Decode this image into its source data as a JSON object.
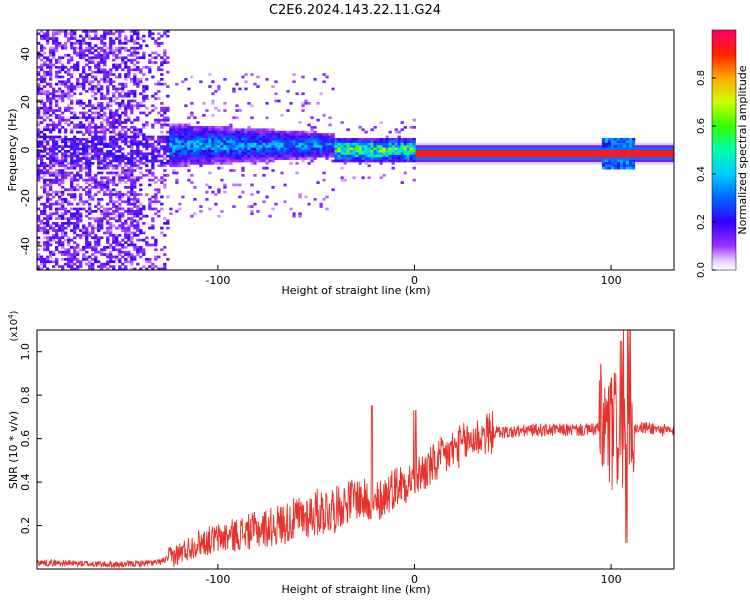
{
  "title": "C2E6.2024.143.22.11.G24",
  "chart_data": [
    {
      "type": "heatmap",
      "title": "C2E6.2024.143.22.11.G24",
      "xlabel": "Height of straight line (km)",
      "ylabel": "Frequency (Hz)",
      "xlim": [
        -192,
        132
      ],
      "ylim": [
        -50,
        50
      ],
      "x_ticks": [
        "-100",
        "0",
        "100"
      ],
      "y_ticks": [
        "-40",
        "-20",
        "0",
        "20",
        "40"
      ],
      "colorbar": {
        "label": "Normalized spectral amplitude",
        "range": [
          0,
          1
        ],
        "ticks": [
          "0.0",
          "0.2",
          "0.4",
          "0.6",
          "0.8"
        ]
      },
      "regions": [
        {
          "x": [
            -192,
            -125
          ],
          "f_spread": 50,
          "amplitude": 0.15,
          "desc": "scattered noise"
        },
        {
          "x": [
            -125,
            -40
          ],
          "f_spread": 10,
          "amplitude": 0.45,
          "desc": "broad band near 0 Hz"
        },
        {
          "x": [
            -40,
            0
          ],
          "f_spread": 5,
          "amplitude": 0.7,
          "desc": "narrowing band"
        },
        {
          "x": [
            0,
            132
          ],
          "f_spread": 2,
          "amplitude": 0.95,
          "desc": "strong narrow line at ~-2 Hz"
        }
      ]
    },
    {
      "type": "line",
      "xlabel": "Height of straight line (km)",
      "ylabel": "SNR (10 * v/v)",
      "y_scale_label": "(x10^4)",
      "y_scale_base": "(x10",
      "y_scale_exp": "4",
      "y_scale_close": ")",
      "xlim": [
        -192,
        132
      ],
      "ylim": [
        0,
        1.1
      ],
      "x_ticks": [
        "-100",
        "0",
        "100"
      ],
      "y_ticks": [
        "0.2",
        "0.4",
        "0.6",
        "0.8",
        "1.0"
      ],
      "series": [
        {
          "name": "SNR",
          "color": "#e8312a",
          "x": [
            -192,
            -150,
            -130,
            -120,
            -110,
            -100,
            -90,
            -80,
            -70,
            -60,
            -50,
            -40,
            -30,
            -20,
            -10,
            0,
            10,
            20,
            30,
            40,
            50,
            60,
            70,
            80,
            90,
            95,
            100,
            105,
            108,
            110,
            115,
            120,
            132
          ],
          "y": [
            0.03,
            0.02,
            0.03,
            0.07,
            0.12,
            0.14,
            0.16,
            0.18,
            0.2,
            0.23,
            0.26,
            0.28,
            0.33,
            0.3,
            0.38,
            0.42,
            0.48,
            0.55,
            0.6,
            0.63,
            0.63,
            0.64,
            0.64,
            0.64,
            0.64,
            0.65,
            0.62,
            0.66,
            0.64,
            0.65,
            0.65,
            0.65,
            0.63
          ]
        }
      ]
    }
  ]
}
